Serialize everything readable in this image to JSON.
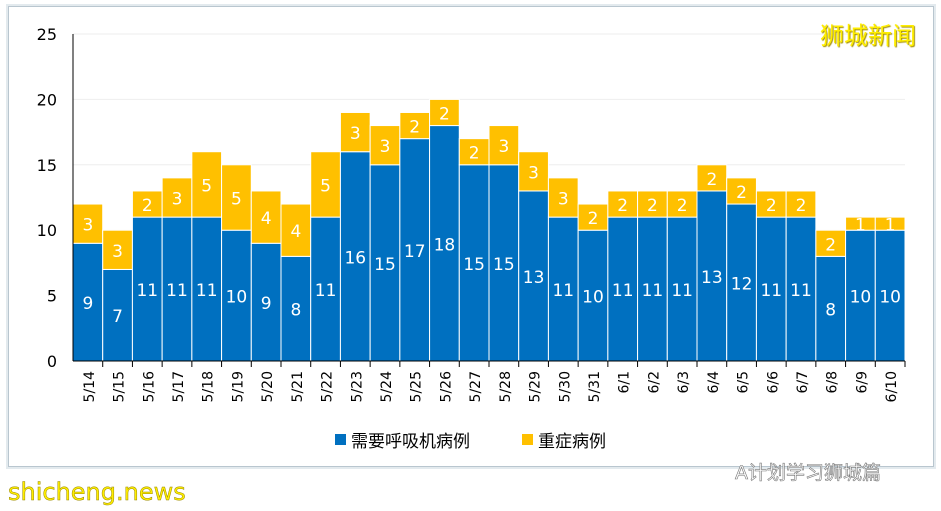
{
  "chart_data": {
    "type": "bar",
    "stacked": true,
    "categories": [
      "5/14",
      "5/15",
      "5/16",
      "5/17",
      "5/18",
      "5/19",
      "5/20",
      "5/21",
      "5/22",
      "5/23",
      "5/24",
      "5/25",
      "5/26",
      "5/27",
      "5/28",
      "5/29",
      "5/30",
      "5/31",
      "6/1",
      "6/2",
      "6/3",
      "6/4",
      "6/5",
      "6/6",
      "6/7",
      "6/8",
      "6/9",
      "6/10"
    ],
    "series": [
      {
        "name": "需要呼吸机病例",
        "color": "#0070c0",
        "values": [
          9,
          7,
          11,
          11,
          11,
          10,
          9,
          8,
          11,
          16,
          15,
          17,
          18,
          15,
          15,
          13,
          11,
          10,
          11,
          11,
          11,
          13,
          12,
          11,
          11,
          8,
          10,
          10
        ]
      },
      {
        "name": "重症病例",
        "color": "#ffc000",
        "values": [
          3,
          3,
          2,
          3,
          5,
          5,
          4,
          4,
          5,
          3,
          3,
          2,
          2,
          2,
          3,
          3,
          3,
          2,
          2,
          2,
          2,
          2,
          2,
          2,
          2,
          2,
          1,
          1
        ]
      }
    ],
    "ylim": [
      0,
      25
    ],
    "yticks": [
      0,
      5,
      10,
      15,
      20,
      25
    ],
    "grid": true,
    "legend": "bottom"
  },
  "watermarks": {
    "top": "狮城新闻",
    "bottom_right": "A计划学习狮城篇",
    "bottom_left": "shicheng.news"
  }
}
